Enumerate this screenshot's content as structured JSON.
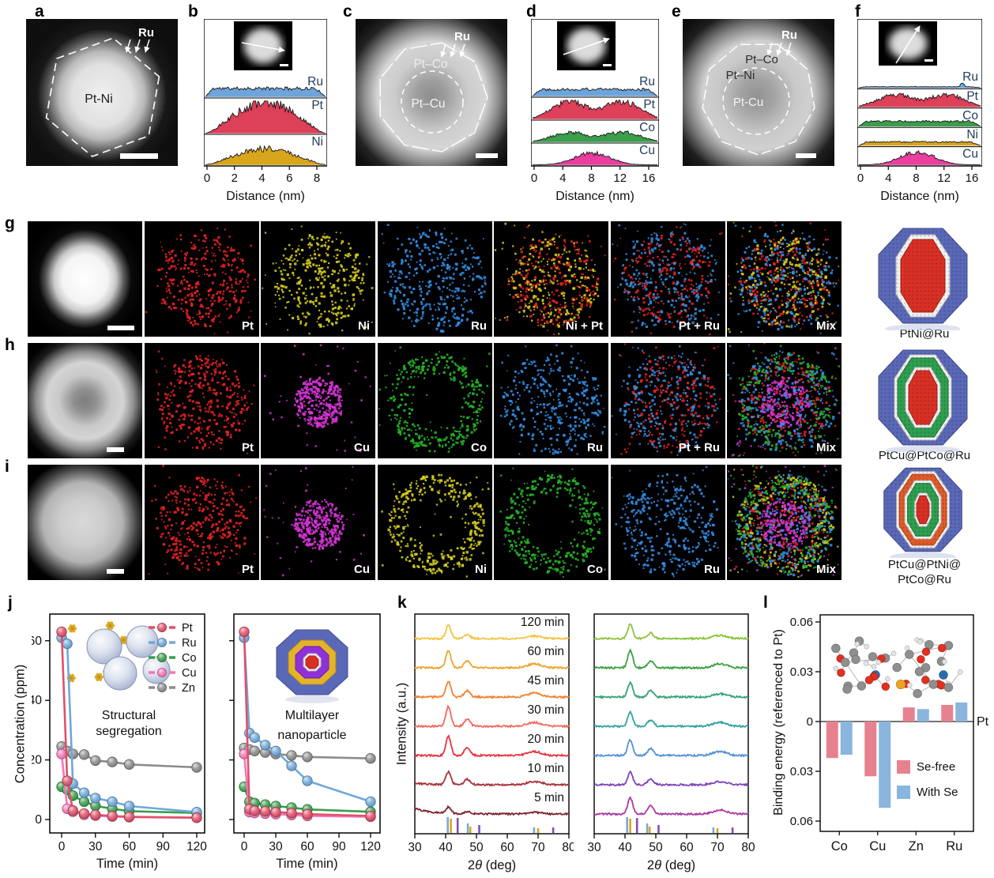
{
  "panels": {
    "a": {
      "letter": "a",
      "region_label": "Pt-Ni",
      "surface_label": "Ru"
    },
    "b": {
      "letter": "b",
      "xlabel": "Distance (nm)",
      "x_ticks": [
        "0",
        "2",
        "4",
        "6",
        "8"
      ],
      "traces": [
        {
          "label": "Ru",
          "color": "#6ea4d9",
          "shape": "plateau",
          "amp": 0.5
        },
        {
          "label": "Pt",
          "color": "#dd4059",
          "shape": "dome",
          "amp": 0.95
        },
        {
          "label": "Ni",
          "color": "#d9a51c",
          "shape": "dome",
          "amp": 0.58
        }
      ]
    },
    "c": {
      "letter": "c",
      "outer_label": "Pt–Co",
      "inner_label": "Pt–Cu",
      "surface_label": "Ru"
    },
    "d": {
      "letter": "d",
      "xlabel": "Distance (nm)",
      "x_ticks": [
        "0",
        "4",
        "8",
        "12",
        "16"
      ],
      "traces": [
        {
          "label": "Ru",
          "color": "#6ea4d9",
          "shape": "plateau",
          "amp": 0.42
        },
        {
          "label": "Pt",
          "color": "#dd4059",
          "shape": "double",
          "amp": 0.9
        },
        {
          "label": "Co",
          "color": "#3a9e4c",
          "shape": "double",
          "amp": 0.5
        },
        {
          "label": "Cu",
          "color": "#ea3f9f",
          "shape": "center",
          "amp": 0.62
        }
      ]
    },
    "e": {
      "letter": "e",
      "outer_label": "Pt–Co",
      "mid_label": "Pt–Ni",
      "inner_label": "Pt-Cu",
      "surface_label": "Ru"
    },
    "f": {
      "letter": "f",
      "xlabel": "Distance (nm)",
      "x_ticks": [
        "0",
        "4",
        "8",
        "12",
        "16"
      ],
      "traces": [
        {
          "label": "Ru",
          "color": "#6ea4d9",
          "shape": "flatspike",
          "amp": 0.3
        },
        {
          "label": "Pt",
          "color": "#dd4059",
          "shape": "double",
          "amp": 0.8
        },
        {
          "label": "Co",
          "color": "#3a9e4c",
          "shape": "plateau",
          "amp": 0.38
        },
        {
          "label": "Ni",
          "color": "#d9a51c",
          "shape": "plateau",
          "amp": 0.28
        },
        {
          "label": "Cu",
          "color": "#ea3f9f",
          "shape": "center",
          "amp": 0.85
        }
      ]
    },
    "g": {
      "letter": "g",
      "model_label": "PtNi@Ru",
      "model_layers": [
        [
          "#5a68b8",
          56,
          60
        ],
        [
          "#f2f2f2",
          34,
          52
        ],
        [
          "#d93025",
          28,
          46
        ]
      ],
      "tiles": [
        {
          "type": "tem",
          "style": "bright"
        },
        {
          "label": "Pt",
          "layers": [
            [
              "#e82222",
              "solid"
            ]
          ]
        },
        {
          "label": "Ni",
          "layers": [
            [
              "#d8d020",
              "solid"
            ]
          ]
        },
        {
          "label": "Ru",
          "layers": [
            [
              "#3390e8",
              "wide"
            ]
          ]
        },
        {
          "label": "Ni + Pt",
          "layers": [
            [
              "#e82222",
              "solid"
            ],
            [
              "#d8d020",
              "solid"
            ]
          ]
        },
        {
          "label": "Pt + Ru",
          "layers": [
            [
              "#e82222",
              "solid"
            ],
            [
              "#3390e8",
              "wide"
            ]
          ]
        },
        {
          "label": "Mix",
          "layers": [
            [
              "#e82222",
              "solid"
            ],
            [
              "#d8d020",
              "solid"
            ],
            [
              "#3390e8",
              "wide"
            ]
          ]
        }
      ]
    },
    "h": {
      "letter": "h",
      "model_label": "PtCu@PtCo@Ru",
      "model_layers": [
        [
          "#5a68b8",
          56,
          60
        ],
        [
          "#f2f2f2",
          36,
          54
        ],
        [
          "#2e9e4f",
          32,
          50
        ],
        [
          "#f2f2f2",
          22,
          38
        ],
        [
          "#d93025",
          18,
          34
        ]
      ],
      "tiles": [
        {
          "type": "tem",
          "style": "ring"
        },
        {
          "label": "Pt",
          "layers": [
            [
              "#e82222",
              "solid"
            ]
          ]
        },
        {
          "label": "Cu",
          "layers": [
            [
              "#d836d8",
              "center"
            ]
          ]
        },
        {
          "label": "Co",
          "layers": [
            [
              "#28b828",
              "ring"
            ]
          ]
        },
        {
          "label": "Ru",
          "layers": [
            [
              "#3390e8",
              "wide"
            ]
          ]
        },
        {
          "label": "Pt + Ru",
          "layers": [
            [
              "#e82222",
              "solid"
            ],
            [
              "#3390e8",
              "wide"
            ]
          ]
        },
        {
          "label": "Mix",
          "layers": [
            [
              "#e82222",
              "solid"
            ],
            [
              "#d836d8",
              "center"
            ],
            [
              "#28b828",
              "ring"
            ],
            [
              "#3390e8",
              "wide"
            ]
          ]
        }
      ]
    },
    "i": {
      "letter": "i",
      "model_label_line1": "PtCu@PtNi@",
      "model_label_line2": "PtCo@Ru",
      "model_layers": [
        [
          "#5a68b8",
          56,
          60
        ],
        [
          "#f2f2f2",
          38,
          55
        ],
        [
          "#e05a28",
          34,
          51
        ],
        [
          "#f2f2f2",
          26,
          42
        ],
        [
          "#2e9e4f",
          22,
          38
        ],
        [
          "#f2f2f2",
          12,
          24
        ],
        [
          "#d93025",
          9,
          20
        ]
      ],
      "tiles": [
        {
          "type": "tem",
          "style": "dim"
        },
        {
          "label": "Pt",
          "layers": [
            [
              "#e82222",
              "solid"
            ]
          ]
        },
        {
          "label": "Cu",
          "layers": [
            [
              "#d836d8",
              "center"
            ]
          ]
        },
        {
          "label": "Ni",
          "layers": [
            [
              "#d8d020",
              "ring"
            ]
          ]
        },
        {
          "label": "Co",
          "layers": [
            [
              "#28b828",
              "ring"
            ]
          ]
        },
        {
          "label": "Ru",
          "layers": [
            [
              "#3390e8",
              "wide"
            ]
          ]
        },
        {
          "label": "Mix",
          "layers": [
            [
              "#e82222",
              "solid"
            ],
            [
              "#d836d8",
              "center"
            ],
            [
              "#d8d020",
              "ring"
            ],
            [
              "#28b828",
              "ring"
            ],
            [
              "#3390e8",
              "wide"
            ]
          ]
        }
      ]
    },
    "j": {
      "letter": "j",
      "ylabel": "Concentration (ppm)",
      "xlabel": "Time (min)"
    },
    "k": {
      "letter": "k",
      "ylabel": "Intensity (a.u.)",
      "xlabel": "2θ (deg)"
    },
    "l": {
      "letter": "l",
      "ylabel": "Binding energy (referenced to Pt)"
    }
  },
  "chart_data": [
    {
      "id": "j-left",
      "type": "line",
      "title": "Structural segregation",
      "xlabel": "Time (min)",
      "ylabel": "Concentration (ppm)",
      "x": [
        0,
        5,
        10,
        20,
        30,
        45,
        60,
        120
      ],
      "x_ticks": [
        0,
        30,
        60,
        90,
        120
      ],
      "y_ticks": [
        0,
        20,
        40,
        60
      ],
      "ylim": [
        -4,
        68
      ],
      "legend_position": "top-right",
      "series": [
        {
          "name": "Pt",
          "color": "#e0506a",
          "values": [
            63,
            13,
            3,
            2,
            1.6,
            1.2,
            0.9,
            0.6
          ]
        },
        {
          "name": "Ru",
          "color": "#6fa8dc",
          "values": [
            61,
            59,
            12,
            9,
            7.2,
            6,
            4.5,
            2.5
          ]
        },
        {
          "name": "Co",
          "color": "#3a9e4c",
          "values": [
            11,
            10,
            8,
            6,
            4.6,
            3.6,
            2.8,
            2.2
          ]
        },
        {
          "name": "Cu",
          "color": "#f478b8",
          "values": [
            22,
            3.6,
            2.6,
            1.6,
            1.3,
            1,
            0.8,
            0.6
          ]
        },
        {
          "name": "Zn",
          "color": "#8c8c8c",
          "values": [
            24.5,
            23,
            22,
            21.8,
            19.8,
            19.3,
            18.5,
            17.5
          ]
        }
      ]
    },
    {
      "id": "j-right",
      "type": "line",
      "title": "Multilayer nanoparticle",
      "xlabel": "Time (min)",
      "ylabel": "",
      "x": [
        0,
        5,
        10,
        20,
        30,
        45,
        60,
        120
      ],
      "x_ticks": [
        0,
        30,
        60,
        90,
        120
      ],
      "y_ticks": [
        0,
        20,
        40,
        60
      ],
      "ylim": [
        -4,
        68
      ],
      "series": [
        {
          "name": "Pt",
          "color": "#e0506a",
          "values": [
            63,
            3.5,
            3,
            2.8,
            2.5,
            2.2,
            1.8,
            1.2
          ]
        },
        {
          "name": "Ru",
          "color": "#6fa8dc",
          "values": [
            61,
            29,
            27.5,
            25,
            23,
            18,
            13,
            6
          ]
        },
        {
          "name": "Co",
          "color": "#3a9e4c",
          "values": [
            11,
            6,
            5.5,
            5,
            4.5,
            4,
            3.4,
            2.6
          ]
        },
        {
          "name": "Cu",
          "color": "#f478b8",
          "values": [
            22,
            2.5,
            2.2,
            2,
            1.8,
            1.5,
            1.2,
            0.9
          ]
        },
        {
          "name": "Zn",
          "color": "#8c8c8c",
          "values": [
            24,
            23.5,
            23,
            22.5,
            22,
            21.5,
            21,
            20.5
          ]
        }
      ]
    },
    {
      "id": "k-left",
      "type": "xrd",
      "xlabel": "2θ (deg)",
      "ylabel": "Intensity (a.u.)",
      "x_ticks": [
        30,
        40,
        50,
        60,
        70,
        80
      ],
      "xlim": [
        30,
        80
      ],
      "peaks": {
        "main": 40.9,
        "sec": 47.0,
        "broad": 68.8
      },
      "curves_bottom_to_top": [
        {
          "label": "5 min",
          "color": "#7d2430",
          "main": 8,
          "sec": 3,
          "broad": 2,
          "slope": 7
        },
        {
          "label": "10 min",
          "color": "#a8333c",
          "main": 16,
          "sec": 7,
          "broad": 4,
          "slope": 2
        },
        {
          "label": "20 min",
          "color": "#e6333e",
          "main": 24,
          "sec": 10,
          "broad": 5,
          "slope": 0
        },
        {
          "label": "30 min",
          "color": "#f2685d",
          "main": 25,
          "sec": 9,
          "broad": 5,
          "slope": 0
        },
        {
          "label": "45 min",
          "color": "#f08434",
          "main": 20,
          "sec": 8,
          "broad": 5,
          "slope": 0
        },
        {
          "label": "60 min",
          "color": "#eda42e",
          "main": 22,
          "sec": 9,
          "broad": 5,
          "slope": 0
        },
        {
          "label": "120 min",
          "color": "#f4c444",
          "main": 17,
          "sec": 5,
          "broad": 3,
          "slope": 0
        }
      ],
      "ref_sticks": [
        [
          40.7,
          "#7aa8d8",
          20
        ],
        [
          41.7,
          "#d9a51c",
          18
        ],
        [
          43.9,
          "#8050b8",
          19
        ],
        [
          47.2,
          "#7aa8d8",
          12
        ],
        [
          48.0,
          "#d9a51c",
          8
        ],
        [
          50.9,
          "#8050b8",
          10
        ],
        [
          68.7,
          "#7aa8d8",
          7
        ],
        [
          70.0,
          "#d9a51c",
          6
        ],
        [
          74.9,
          "#8050b8",
          7
        ]
      ]
    },
    {
      "id": "k-right",
      "type": "xrd",
      "xlabel": "2θ (deg)",
      "ylabel": "",
      "x_ticks": [
        30,
        40,
        50,
        60,
        70,
        80
      ],
      "xlim": [
        30,
        80
      ],
      "peaks": {
        "main": 41.7,
        "sec": 48.3,
        "broad": 70.8
      },
      "curves_bottom_to_top": [
        {
          "label": "",
          "color": "#aa3b9e",
          "main": 20,
          "sec": 10,
          "broad": 5,
          "slope": 0
        },
        {
          "label": "",
          "color": "#7c44b8",
          "main": 16,
          "sec": 7,
          "broad": 4,
          "slope": 0
        },
        {
          "label": "",
          "color": "#5590d5",
          "main": 20,
          "sec": 9,
          "broad": 5,
          "slope": 0
        },
        {
          "label": "",
          "color": "#2fa3a0",
          "main": 18,
          "sec": 8,
          "broad": 5,
          "slope": 0
        },
        {
          "label": "",
          "color": "#36a377",
          "main": 18,
          "sec": 8,
          "broad": 4,
          "slope": 0
        },
        {
          "label": "",
          "color": "#3aa043",
          "main": 22,
          "sec": 9,
          "broad": 5,
          "slope": 0
        },
        {
          "label": "",
          "color": "#8cc43c",
          "main": 18,
          "sec": 7,
          "broad": 4,
          "slope": 0
        }
      ],
      "ref_sticks": [
        [
          40.7,
          "#7aa8d8",
          20
        ],
        [
          41.7,
          "#d9a51c",
          18
        ],
        [
          43.9,
          "#8050b8",
          19
        ],
        [
          47.2,
          "#7aa8d8",
          12
        ],
        [
          48.0,
          "#d9a51c",
          8
        ],
        [
          50.9,
          "#8050b8",
          10
        ],
        [
          68.7,
          "#7aa8d8",
          7
        ],
        [
          70.0,
          "#d9a51c",
          6
        ],
        [
          74.9,
          "#8050b8",
          7
        ]
      ]
    },
    {
      "id": "l",
      "type": "bar",
      "ylabel": "Binding energy (referenced to Pt)",
      "categories": [
        "Co",
        "Cu",
        "Zn",
        "Ru"
      ],
      "y_ticks": [
        "0.06",
        "0.03",
        "0",
        "−0.03",
        "−0.06"
      ],
      "y_tick_values": [
        0.06,
        0.03,
        0,
        -0.03,
        -0.06
      ],
      "ylim": [
        -0.068,
        0.065
      ],
      "baseline_label": "Pt",
      "series": [
        {
          "name": "Se-free",
          "color": "#e8818f",
          "values": [
            -0.022,
            -0.033,
            0.0085,
            0.01
          ]
        },
        {
          "name": "With Se",
          "color": "#8ab5dd",
          "values": [
            -0.02,
            -0.052,
            0.0075,
            0.0115
          ]
        }
      ]
    }
  ]
}
